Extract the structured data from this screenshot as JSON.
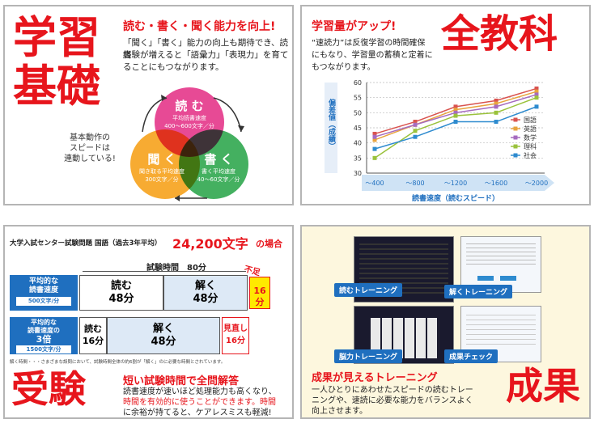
{
  "p1": {
    "big_title_1": "学習",
    "big_title_2": "基礎",
    "headline": "読む・書く・聞く能力を向上!",
    "body_1": "「聞く」「書く」能力の向上も期待でき、読書",
    "body_2": "経験が増えると「語彙力」「表現力」を育て",
    "body_3": "ることにもつながります。",
    "callout_1": "基本動作の",
    "callout_2": "スピードは",
    "callout_3": "連動している!",
    "read_title": "読 む",
    "read_sub_1": "平均読書速度",
    "read_sub_2": "400～600文字／分",
    "listen_title": "聞 く",
    "listen_sub_1": "聞き取る平均速度",
    "listen_sub_2": "300文字／分",
    "write_title": "書 く",
    "write_sub_1": "書く平均速度",
    "write_sub_2": "40～60文字／分",
    "colors": {
      "read": "#e4368a",
      "listen": "#f7a21b",
      "write": "#2fa84f"
    }
  },
  "p2": {
    "big_title": "全教科",
    "headline": "学習量がアップ!",
    "body_1": "“速読力”は反復学習の時間確保",
    "body_2": "にもなり、学習量の蓄積と定着に",
    "body_3": "もつながります。",
    "chart_data": {
      "type": "line",
      "categories": [
        "～400",
        "～800",
        "～1200",
        "～1600",
        "～2000"
      ],
      "ylabel": "偏差値（成績）",
      "xlabel": "読書速度（読むスピード）",
      "ylim": [
        30,
        60
      ],
      "yticks": [
        30,
        35,
        40,
        45,
        50,
        55,
        60
      ],
      "series": [
        {
          "name": "国語",
          "color": "#d9534f",
          "values": [
            43,
            47,
            52,
            54,
            58
          ]
        },
        {
          "name": "英語",
          "color": "#e8a33d",
          "values": [
            41,
            46,
            51,
            53,
            57
          ]
        },
        {
          "name": "数学",
          "color": "#a66bbf",
          "values": [
            42,
            46,
            50,
            52,
            56
          ]
        },
        {
          "name": "理科",
          "color": "#9ac23c",
          "values": [
            35,
            44,
            49,
            50,
            55
          ]
        },
        {
          "name": "社会",
          "color": "#2e8bcf",
          "values": [
            38,
            42,
            47,
            47,
            52
          ]
        }
      ]
    }
  },
  "p3": {
    "header_prefix": "大学入試センター試験問題 国語（過去3年平均）",
    "header_big": "24,200文字",
    "header_suffix": "の場合",
    "time_label": "試験時間　80分",
    "row1_label_1": "平均的な",
    "row1_label_2": "読書速度",
    "row1_label_3": "500文字/分",
    "row1_read": "読む",
    "row1_read_time": "48分",
    "row1_solve": "解く",
    "row1_solve_time": "48分",
    "shortage": "不足",
    "shortage_time": "16分",
    "row2_label_1": "平均的な",
    "row2_label_2": "読書速度の",
    "row2_label_3": "3倍",
    "row2_label_4": "1500文字/分",
    "row2_read": "読む",
    "row2_read_time": "16分",
    "row2_solve": "解く",
    "row2_solve_time": "48分",
    "review": "見直し",
    "review_time": "16分",
    "note": "解く時間・・・さまざまな設問において、試験時間全体の約6割が「解く」のに必要な時間とされています。",
    "big_title": "受験",
    "headline": "短い試験時間で全問解答",
    "body_1": "読書速度が速いほど処理能力も高くなり、",
    "body_2": "時間を有効的に使うことができます。時間",
    "body_3": "に余裕が持てると、ケアレスミスも軽減!"
  },
  "p4": {
    "label_read": "読むトレーニング",
    "label_listen": "解くトレーニング",
    "label_brain": "脳力トレーニング",
    "label_check": "成果チェック",
    "headline": "成果が見えるトレーニング",
    "body_1": "一人ひとりにあわせたスピードの読むトレー",
    "body_2": "ニングや、速読に必要な能力をバランスよく",
    "body_3": "向上させます。",
    "big_title": "成果"
  }
}
